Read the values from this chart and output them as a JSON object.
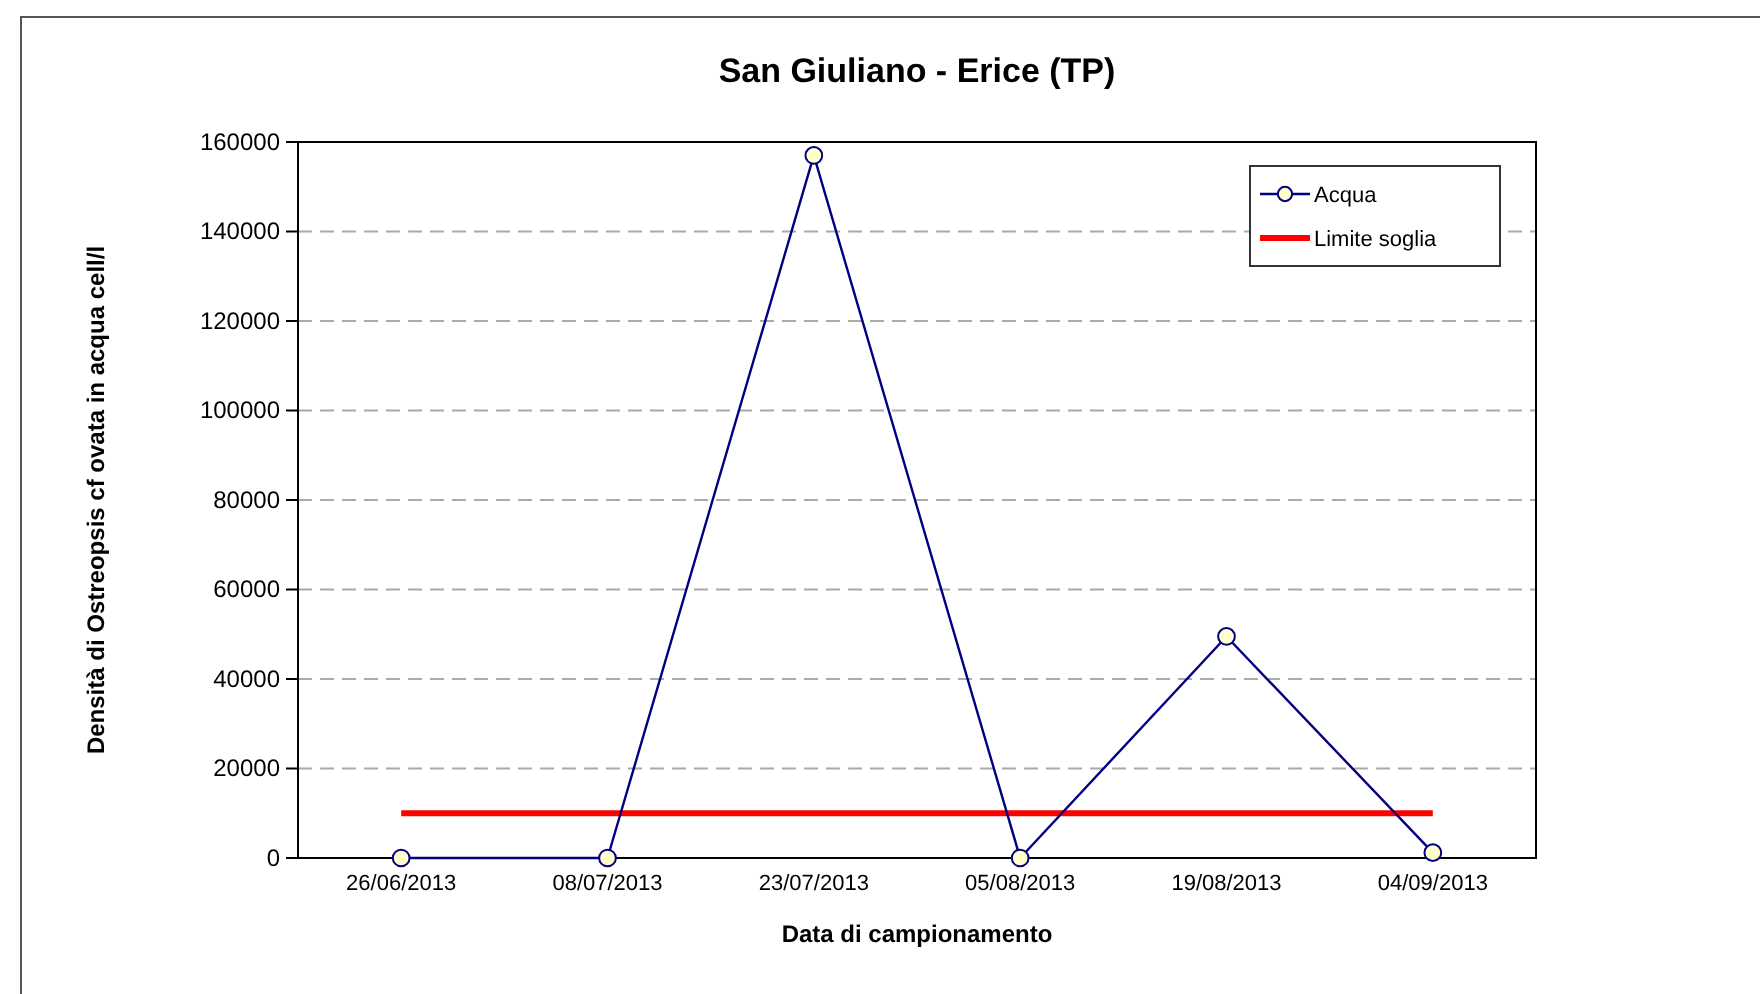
{
  "chart_data": {
    "type": "line",
    "title": "San Giuliano - Erice (TP)",
    "xlabel": "Data di campionamento",
    "ylabel": "Densità di Ostreopsis cf ovata in acqua cell/l",
    "categories": [
      "26/06/2013",
      "08/07/2013",
      "23/07/2013",
      "05/08/2013",
      "19/08/2013",
      "04/09/2013"
    ],
    "series": [
      {
        "name": "Acqua",
        "color": "#000080",
        "marker": "circle",
        "values": [
          0,
          0,
          157000,
          0,
          49500,
          1200
        ]
      },
      {
        "name": "Limite soglia",
        "color": "#ff0000",
        "marker": "none",
        "values": [
          10000,
          10000,
          10000,
          10000,
          10000,
          10000
        ]
      }
    ],
    "ylim": [
      0,
      160000
    ],
    "yticks": [
      0,
      20000,
      40000,
      60000,
      80000,
      100000,
      120000,
      140000,
      160000
    ],
    "grid": "y",
    "legend": "top right"
  }
}
